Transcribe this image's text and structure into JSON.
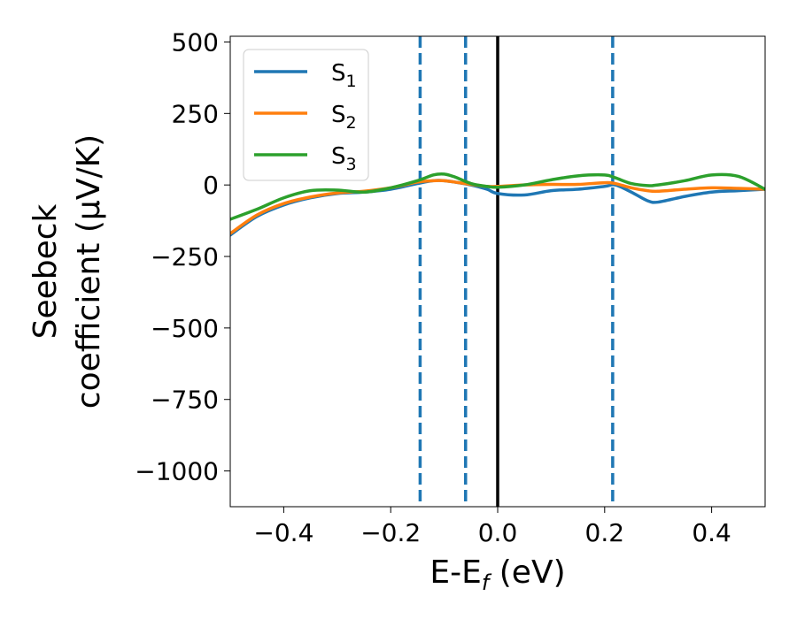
{
  "chart_data": {
    "type": "line",
    "xlabel": "E-E",
    "xlabel_sub": "f",
    "xlabel_unit": " (eV)",
    "ylabel_line1": "Seebeck",
    "ylabel_line2": "coefficient  (μV/K)",
    "xlim": [
      -0.5,
      0.5
    ],
    "ylim": [
      -1125,
      520
    ],
    "xticks": [
      -0.4,
      -0.2,
      0.0,
      0.2,
      0.4
    ],
    "xtick_labels": [
      "−0.4",
      "−0.2",
      "0.0",
      "0.2",
      "0.4"
    ],
    "yticks": [
      500,
      250,
      0,
      -250,
      -500,
      -750,
      -1000
    ],
    "ytick_labels": [
      "500",
      "250",
      "0",
      "−250",
      "−500",
      "−750",
      "−1000"
    ],
    "legend_position": "top-left",
    "vlines": [
      {
        "x": 0.0,
        "style": "solid",
        "color": "#000000"
      },
      {
        "x": -0.145,
        "style": "dashed",
        "color": "#1f77b4"
      },
      {
        "x": -0.06,
        "style": "dashed",
        "color": "#1f77b4"
      },
      {
        "x": 0.215,
        "style": "dashed",
        "color": "#1f77b4"
      }
    ],
    "series": [
      {
        "name": "S",
        "sub": "1",
        "color": "#1f77b4",
        "x": [
          -0.5,
          -0.45,
          -0.4,
          -0.35,
          -0.3,
          -0.25,
          -0.2,
          -0.15,
          -0.12,
          -0.1,
          -0.08,
          -0.05,
          -0.02,
          0.0,
          0.05,
          0.1,
          0.15,
          0.2,
          0.22,
          0.25,
          0.28,
          0.3,
          0.35,
          0.4,
          0.45,
          0.5
        ],
        "y": [
          -175,
          -110,
          -70,
          -45,
          -30,
          -25,
          -15,
          5,
          15,
          15,
          10,
          0,
          -15,
          -30,
          -35,
          -20,
          -15,
          -5,
          0,
          -25,
          -55,
          -60,
          -40,
          -25,
          -20,
          -15
        ]
      },
      {
        "name": "S",
        "sub": "2",
        "color": "#ff7f0e",
        "x": [
          -0.5,
          -0.45,
          -0.4,
          -0.35,
          -0.3,
          -0.25,
          -0.2,
          -0.15,
          -0.12,
          -0.1,
          -0.08,
          -0.05,
          -0.02,
          0.0,
          0.05,
          0.1,
          0.15,
          0.2,
          0.22,
          0.25,
          0.28,
          0.3,
          0.35,
          0.4,
          0.45,
          0.5
        ],
        "y": [
          -170,
          -105,
          -65,
          -42,
          -28,
          -22,
          -10,
          10,
          15,
          15,
          10,
          2,
          -5,
          -5,
          0,
          2,
          2,
          8,
          5,
          -10,
          -20,
          -22,
          -15,
          -10,
          -12,
          -15
        ]
      },
      {
        "name": "S",
        "sub": "3",
        "color": "#2ca02c",
        "x": [
          -0.5,
          -0.45,
          -0.4,
          -0.35,
          -0.3,
          -0.25,
          -0.2,
          -0.15,
          -0.12,
          -0.1,
          -0.08,
          -0.05,
          -0.02,
          0.0,
          0.05,
          0.1,
          0.15,
          0.2,
          0.22,
          0.25,
          0.28,
          0.3,
          0.35,
          0.4,
          0.45,
          0.5
        ],
        "y": [
          -120,
          -85,
          -45,
          -20,
          -18,
          -25,
          -10,
          15,
          35,
          38,
          28,
          5,
          -5,
          -8,
          0,
          18,
          32,
          35,
          25,
          5,
          -2,
          0,
          15,
          35,
          30,
          -15
        ]
      }
    ]
  }
}
